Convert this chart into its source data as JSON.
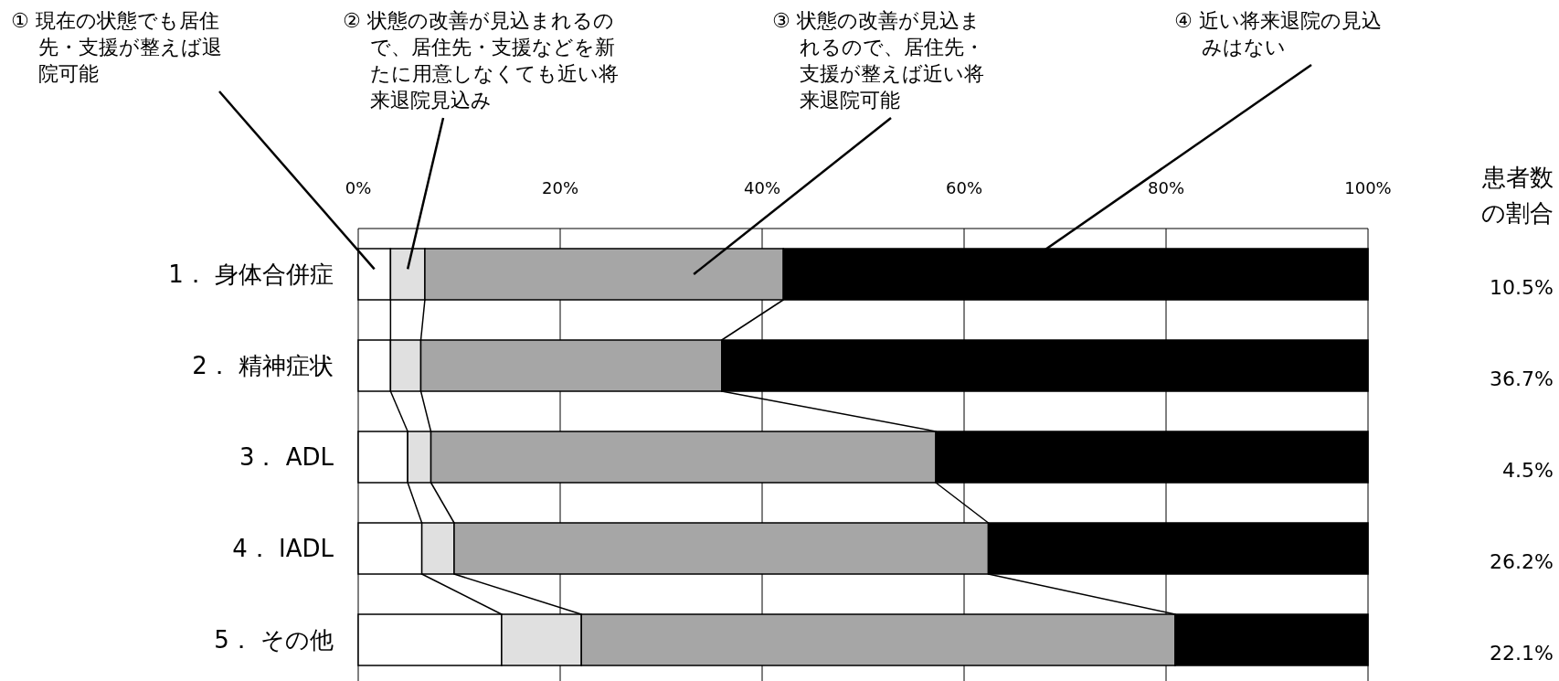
{
  "chart_data": {
    "type": "bar",
    "orientation": "horizontal",
    "stacked": true,
    "grid": "x",
    "categories": [
      "1． 身体合併症",
      "2． 精神症状",
      "3． ADL",
      "4． IADL",
      "5． その他"
    ],
    "series": [
      {
        "name": "① 現在の状態でも居住先・支援が整えば退院可能",
        "color": "#ffffff",
        "values": [
          3.2,
          3.2,
          4.9,
          6.3,
          14.2
        ]
      },
      {
        "name": "② 状態の改善が見込まれるので、居住先・支援などを新たに用意しなくても近い将来退院見込み",
        "color": "#e0e0e0",
        "values": [
          3.4,
          3.0,
          2.3,
          3.2,
          7.9
        ]
      },
      {
        "name": "③ 状態の改善が見込まれるので、居住先・支援が整えば近い将来退院可能",
        "color": "#a6a6a6",
        "values": [
          35.5,
          29.8,
          50.0,
          52.9,
          58.8
        ]
      },
      {
        "name": "④ 近い将来退院の見込みはない",
        "color": "#000000",
        "values": [
          57.9,
          64.0,
          42.8,
          37.6,
          19.1
        ]
      }
    ],
    "xlim": [
      0,
      100
    ],
    "xticks": [
      {
        "value": 0,
        "label": "0%"
      },
      {
        "value": 20,
        "label": "20%"
      },
      {
        "value": 40,
        "label": "40%"
      },
      {
        "value": 60,
        "label": "60%"
      },
      {
        "value": 80,
        "label": "80%"
      },
      {
        "value": 100,
        "label": "100%"
      }
    ],
    "annotations": [
      "患者数の割合",
      "10.5%",
      "36.7%",
      "4.5%",
      "26.2%",
      "22.1%"
    ]
  }
}
